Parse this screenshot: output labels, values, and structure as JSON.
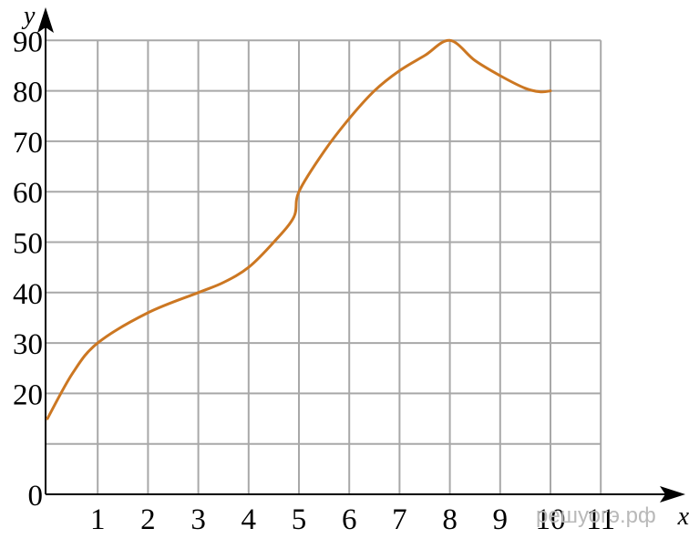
{
  "chart_data": {
    "type": "line",
    "xlabel": "x",
    "ylabel": "y",
    "xlim": [
      0,
      11
    ],
    "ylim": [
      0,
      90
    ],
    "x_ticks": [
      "1",
      "2",
      "3",
      "4",
      "5",
      "6",
      "7",
      "8",
      "9",
      "10",
      "11"
    ],
    "y_ticks": [
      "0",
      "20",
      "30",
      "40",
      "50",
      "60",
      "70",
      "80",
      "90"
    ],
    "grid": true,
    "line_color": "#cc7722",
    "series": [
      {
        "x": [
          0,
          0.5,
          1,
          2,
          3,
          3.5,
          4,
          4.5,
          4.9,
          5,
          5.5,
          6,
          6.5,
          7,
          7.5,
          8,
          8.5,
          9,
          9.5,
          9.8,
          10
        ],
        "y": [
          15,
          24,
          30,
          36,
          40,
          42,
          45,
          50,
          55,
          60,
          68,
          74.5,
          80,
          84,
          87,
          90,
          86,
          83,
          80.5,
          79.8,
          80
        ]
      }
    ]
  },
  "watermark": "решуогэ.рф"
}
